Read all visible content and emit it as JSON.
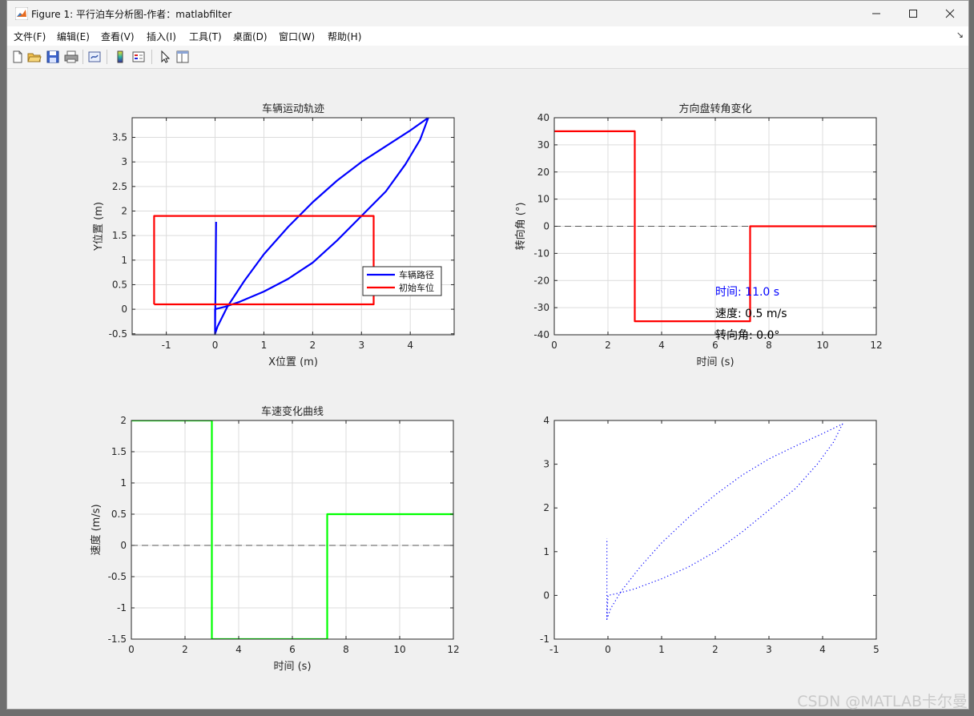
{
  "window": {
    "title": "Figure 1: 平行泊车分析图-作者：matlabfilter",
    "minimize": "minimize",
    "maximize": "maximize",
    "close": "close"
  },
  "menu": [
    "文件(F)",
    "编辑(E)",
    "查看(V)",
    "插入(I)",
    "工具(T)",
    "桌面(D)",
    "窗口(W)",
    "帮助(H)"
  ],
  "menu_dock": "↘",
  "toolbar": [
    "new-figure-icon",
    "open-icon",
    "save-icon",
    "print-icon",
    "link-icon",
    "colorbar-icon",
    "legend-icon",
    "pointer-icon",
    "property-inspector-icon"
  ],
  "watermark": "CSDN @MATLAB卡尔曼",
  "colors": {
    "blue": "#0000ff",
    "red": "#ff0000",
    "green": "#00ff00",
    "grid": "#dcdcdc",
    "axes_bg": "#ffffff"
  },
  "chart_data": [
    {
      "type": "line",
      "title": "车辆运动轨迹",
      "xlabel": "X位置 (m)",
      "ylabel": "Y位置 (m)",
      "xlim": [
        -1.7,
        4.9
      ],
      "ylim": [
        -0.52,
        3.9
      ],
      "xticks": [
        -1,
        0,
        1,
        2,
        3,
        4
      ],
      "yticks": [
        -0.5,
        0,
        0.5,
        1,
        1.5,
        2,
        2.5,
        3,
        3.5
      ],
      "grid": true,
      "legend": {
        "position": "inside-right",
        "entries": [
          "车辆路径",
          "初始车位"
        ]
      },
      "series": [
        {
          "name": "车辆路径",
          "color": "#0000ff",
          "x": [
            0.0,
            0.05,
            0.25,
            0.6,
            1.0,
            1.5,
            2.0,
            2.5,
            3.0,
            3.5,
            4.0,
            4.37,
            4.2,
            3.9,
            3.5,
            3.0,
            2.5,
            2.0,
            1.5,
            1.0,
            0.5,
            0.2,
            0.0,
            0.0,
            0.02
          ],
          "y": [
            -0.5,
            -0.35,
            0.05,
            0.58,
            1.12,
            1.68,
            2.18,
            2.62,
            3.0,
            3.32,
            3.64,
            3.9,
            3.45,
            2.95,
            2.4,
            1.9,
            1.4,
            0.95,
            0.62,
            0.36,
            0.15,
            0.05,
            0.0,
            -0.5,
            1.78
          ]
        },
        {
          "name": "初始车位",
          "color": "#ff0000",
          "x": [
            -1.25,
            3.25,
            3.25,
            -1.25,
            -1.25
          ],
          "y": [
            0.1,
            0.1,
            1.9,
            1.9,
            0.1
          ]
        }
      ]
    },
    {
      "type": "line",
      "title": "方向盘转角变化",
      "xlabel": "时间 (s)",
      "ylabel": "转向角 (°)",
      "xlim": [
        0,
        12
      ],
      "ylim": [
        -40,
        40
      ],
      "xticks": [
        0,
        2,
        4,
        6,
        8,
        10,
        12
      ],
      "yticks": [
        -40,
        -30,
        -20,
        -10,
        0,
        10,
        20,
        30,
        40
      ],
      "grid": true,
      "reference_line": {
        "y": 0,
        "style": "dashed"
      },
      "series": [
        {
          "color": "#ff0000",
          "x": [
            0,
            3,
            3,
            7.3,
            7.3,
            12
          ],
          "y": [
            35,
            35,
            -35,
            -35,
            0,
            0
          ]
        }
      ],
      "annotations": [
        {
          "text": "时间: 11.0 s",
          "x": 6,
          "y": -24,
          "color": "#0000ff"
        },
        {
          "text": "速度: 0.5 m/s",
          "x": 6,
          "y": -32,
          "color": "#000000"
        },
        {
          "text": "转向角: 0.0°",
          "x": 6,
          "y": -40,
          "color": "#000000"
        }
      ]
    },
    {
      "type": "line",
      "title": "车速变化曲线",
      "xlabel": "时间 (s)",
      "ylabel": "速度 (m/s)",
      "xlim": [
        0,
        12
      ],
      "ylim": [
        -1.5,
        2
      ],
      "xticks": [
        0,
        2,
        4,
        6,
        8,
        10,
        12
      ],
      "yticks": [
        -1.5,
        -1,
        -0.5,
        0,
        0.5,
        1,
        1.5,
        2
      ],
      "grid": true,
      "reference_line": {
        "y": 0,
        "style": "dashed"
      },
      "series": [
        {
          "color": "#00ff00",
          "x": [
            0,
            3,
            3,
            7.3,
            7.3,
            12
          ],
          "y": [
            2,
            2,
            -1.5,
            -1.5,
            0.5,
            0.5
          ]
        }
      ]
    },
    {
      "type": "line",
      "title": "",
      "xlabel": "",
      "ylabel": "",
      "xlim": [
        -1,
        5
      ],
      "ylim": [
        -1,
        4
      ],
      "xticks": [
        -1,
        0,
        1,
        2,
        3,
        4,
        5
      ],
      "yticks": [
        -1,
        0,
        1,
        2,
        3,
        4
      ],
      "grid": false,
      "series": [
        {
          "color": "#0000ff",
          "style": "dotted",
          "x": [
            -0.02,
            0.05,
            0.25,
            0.6,
            1.0,
            1.5,
            2.0,
            2.5,
            3.0,
            3.5,
            4.0,
            4.37,
            4.2,
            3.9,
            3.5,
            3.0,
            2.5,
            2.0,
            1.5,
            1.0,
            0.5,
            0.2,
            0.0,
            -0.02,
            -0.02
          ],
          "y": [
            -0.55,
            -0.3,
            0.1,
            0.65,
            1.2,
            1.78,
            2.3,
            2.75,
            3.12,
            3.42,
            3.7,
            3.92,
            3.5,
            3.0,
            2.45,
            1.95,
            1.45,
            1.0,
            0.65,
            0.38,
            0.15,
            0.05,
            0.0,
            -0.55,
            1.3
          ]
        }
      ]
    }
  ]
}
